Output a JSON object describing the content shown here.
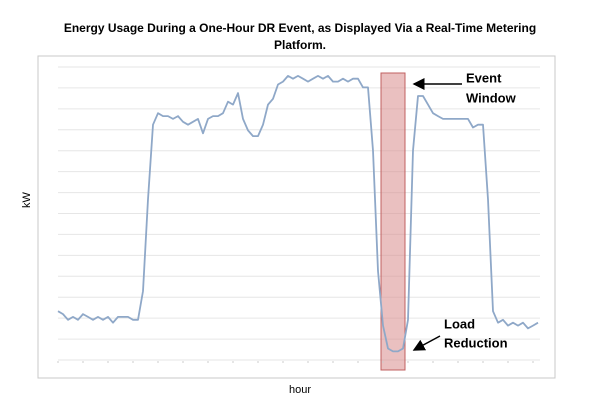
{
  "chart_data": {
    "type": "line",
    "title_lines": [
      "Energy Usage During a One-Hour DR Event, as Displayed Via a Real-Time Metering",
      "Platform."
    ],
    "x_label": "hour",
    "y_label": "kW",
    "ylim": [
      0,
      100
    ],
    "color": "#8fa8c8",
    "event_window": [
      64.6,
      69.4
    ],
    "event_color": "#d98c8c",
    "annotations": [
      {
        "lines": [
          "Event",
          "Window"
        ]
      },
      {
        "lines": [
          "Load",
          "Reduction"
        ]
      }
    ],
    "categories": [
      null,
      null,
      null,
      null,
      null,
      null,
      null,
      null,
      null,
      null,
      null,
      null,
      null,
      null,
      null,
      null,
      null,
      null,
      null,
      null,
      null,
      null,
      null,
      null,
      null,
      null,
      null,
      null,
      null,
      null,
      null,
      null,
      null,
      null,
      null,
      null,
      null,
      null,
      null,
      null,
      null,
      null,
      null,
      null,
      null,
      null,
      null,
      null,
      null,
      null,
      null,
      null,
      null,
      null,
      null,
      null,
      null,
      null,
      null,
      null,
      null,
      null,
      null,
      null,
      null,
      null,
      null,
      null,
      null,
      null,
      null,
      null,
      null,
      null,
      null,
      null,
      null,
      null,
      null,
      null,
      null,
      null,
      null,
      null,
      null,
      null,
      null,
      null,
      null,
      null,
      null,
      null,
      null,
      null,
      null,
      null,
      null
    ],
    "values": [
      17,
      16,
      14,
      15,
      14,
      16,
      15,
      14,
      15,
      14,
      15,
      13,
      15,
      15,
      15,
      14,
      14,
      24,
      56,
      82,
      86,
      85,
      85,
      84,
      85,
      83,
      82,
      83,
      84,
      79,
      84,
      85,
      85,
      86,
      90,
      89,
      93,
      84,
      80,
      78,
      78,
      82,
      89,
      91,
      96,
      97,
      99,
      98,
      99,
      98,
      97,
      98,
      99,
      98,
      99,
      97,
      97,
      98,
      97,
      98,
      98,
      95,
      95,
      73,
      31,
      12,
      4,
      3,
      3,
      4,
      14,
      73,
      92,
      92,
      89,
      86,
      85,
      84,
      84,
      84,
      84,
      84,
      84,
      81,
      82,
      82,
      56,
      17,
      13,
      14,
      12,
      13,
      12,
      13,
      11,
      12,
      13
    ]
  }
}
